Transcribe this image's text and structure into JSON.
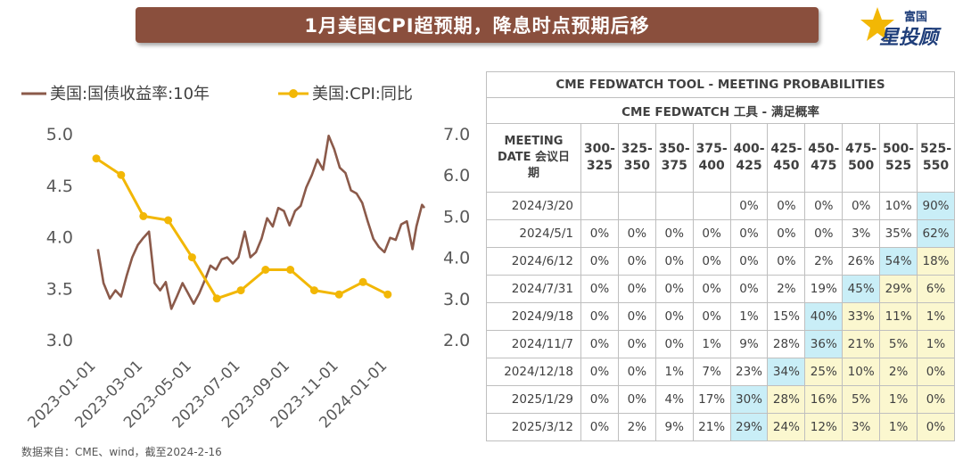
{
  "header": {
    "title": "1月美国CPI超预期，降息时点预期后移"
  },
  "logo": {
    "small": "富国",
    "big": "星投顾"
  },
  "source": "数据来自：CME、wind，截至2024-2-16",
  "colors": {
    "yield_line": "#8b5a4a",
    "cpi_line": "#f2b705",
    "blue_cell": "#c9eef7",
    "yellow_cell": "#fbf7cf"
  },
  "chart_data": {
    "type": "line",
    "x_ticks": [
      "2023-01-01",
      "2023-03-01",
      "2023-05-01",
      "2023-07-01",
      "2023-09-01",
      "2023-11-01",
      "2024-01-01"
    ],
    "x_range": [
      "2023-01-01",
      "2024-02-16"
    ],
    "y_left": {
      "range": [
        3.0,
        5.0
      ],
      "ticks": [
        "5.0",
        "4.5",
        "4.0",
        "3.5",
        "3.0"
      ]
    },
    "y_right": {
      "range": [
        2.0,
        7.0
      ],
      "ticks": [
        "7.0",
        "6.0",
        "5.0",
        "4.0",
        "3.0",
        "2.0"
      ]
    },
    "series": [
      {
        "name": "美国:国债收益率:10年",
        "axis": "left",
        "points": [
          [
            "2023-01-03",
            3.88
          ],
          [
            "2023-01-10",
            3.55
          ],
          [
            "2023-01-18",
            3.4
          ],
          [
            "2023-01-25",
            3.48
          ],
          [
            "2023-02-01",
            3.42
          ],
          [
            "2023-02-08",
            3.62
          ],
          [
            "2023-02-15",
            3.8
          ],
          [
            "2023-02-22",
            3.92
          ],
          [
            "2023-03-01",
            3.99
          ],
          [
            "2023-03-08",
            4.05
          ],
          [
            "2023-03-15",
            3.55
          ],
          [
            "2023-03-22",
            3.48
          ],
          [
            "2023-03-29",
            3.56
          ],
          [
            "2023-04-05",
            3.3
          ],
          [
            "2023-04-12",
            3.42
          ],
          [
            "2023-04-19",
            3.55
          ],
          [
            "2023-04-26",
            3.45
          ],
          [
            "2023-05-03",
            3.35
          ],
          [
            "2023-05-10",
            3.45
          ],
          [
            "2023-05-17",
            3.58
          ],
          [
            "2023-05-24",
            3.72
          ],
          [
            "2023-05-31",
            3.68
          ],
          [
            "2023-06-07",
            3.78
          ],
          [
            "2023-06-14",
            3.8
          ],
          [
            "2023-06-21",
            3.74
          ],
          [
            "2023-06-28",
            3.8
          ],
          [
            "2023-07-06",
            4.05
          ],
          [
            "2023-07-13",
            3.8
          ],
          [
            "2023-07-20",
            3.85
          ],
          [
            "2023-07-27",
            3.98
          ],
          [
            "2023-08-03",
            4.18
          ],
          [
            "2023-08-10",
            4.1
          ],
          [
            "2023-08-17",
            4.28
          ],
          [
            "2023-08-24",
            4.25
          ],
          [
            "2023-08-31",
            4.11
          ],
          [
            "2023-09-07",
            4.25
          ],
          [
            "2023-09-14",
            4.3
          ],
          [
            "2023-09-21",
            4.48
          ],
          [
            "2023-09-28",
            4.6
          ],
          [
            "2023-10-05",
            4.75
          ],
          [
            "2023-10-12",
            4.65
          ],
          [
            "2023-10-19",
            4.98
          ],
          [
            "2023-10-26",
            4.85
          ],
          [
            "2023-11-02",
            4.67
          ],
          [
            "2023-11-09",
            4.62
          ],
          [
            "2023-11-16",
            4.45
          ],
          [
            "2023-11-23",
            4.42
          ],
          [
            "2023-11-30",
            4.33
          ],
          [
            "2023-12-07",
            4.15
          ],
          [
            "2023-12-14",
            3.98
          ],
          [
            "2023-12-21",
            3.9
          ],
          [
            "2023-12-28",
            3.85
          ],
          [
            "2024-01-04",
            3.99
          ],
          [
            "2024-01-11",
            3.97
          ],
          [
            "2024-01-18",
            4.12
          ],
          [
            "2024-01-25",
            4.15
          ],
          [
            "2024-02-01",
            3.88
          ],
          [
            "2024-02-06",
            4.1
          ],
          [
            "2024-02-13",
            4.31
          ],
          [
            "2024-02-16",
            4.28
          ]
        ]
      },
      {
        "name": "美国:CPI:同比",
        "axis": "right",
        "points": [
          [
            "2023-01-01",
            6.4
          ],
          [
            "2023-02-01",
            6.0
          ],
          [
            "2023-03-01",
            5.0
          ],
          [
            "2023-04-01",
            4.9
          ],
          [
            "2023-05-01",
            4.0
          ],
          [
            "2023-06-01",
            3.0
          ],
          [
            "2023-07-01",
            3.2
          ],
          [
            "2023-08-01",
            3.7
          ],
          [
            "2023-09-01",
            3.7
          ],
          [
            "2023-10-01",
            3.2
          ],
          [
            "2023-11-01",
            3.1
          ],
          [
            "2023-12-01",
            3.4
          ],
          [
            "2024-01-01",
            3.1
          ]
        ]
      }
    ]
  },
  "table": {
    "caption_en": "CME FEDWATCH TOOL - MEETING PROBABILITIES",
    "caption_cn": "CME FEDWATCH 工具 - 满足概率",
    "meeting_header": [
      "MEETING",
      "DATE 会议日",
      "期"
    ],
    "columns": [
      [
        "300-",
        "325"
      ],
      [
        "325-",
        "350"
      ],
      [
        "350-",
        "375"
      ],
      [
        "375-",
        "400"
      ],
      [
        "400-",
        "425"
      ],
      [
        "425-",
        "450"
      ],
      [
        "450-",
        "475"
      ],
      [
        "475-",
        "500"
      ],
      [
        "500-",
        "525"
      ],
      [
        "525-",
        "550"
      ]
    ],
    "rows": [
      {
        "date": "2024/3/20",
        "cells": [
          "",
          "",
          "",
          "",
          "0%",
          "0%",
          "0%",
          "0%",
          "10%",
          "90%"
        ]
      },
      {
        "date": "2024/5/1",
        "cells": [
          "0%",
          "0%",
          "0%",
          "0%",
          "0%",
          "0%",
          "0%",
          "3%",
          "35%",
          "62%"
        ]
      },
      {
        "date": "2024/6/12",
        "cells": [
          "0%",
          "0%",
          "0%",
          "0%",
          "0%",
          "0%",
          "2%",
          "26%",
          "54%",
          "18%"
        ]
      },
      {
        "date": "2024/7/31",
        "cells": [
          "0%",
          "0%",
          "0%",
          "0%",
          "0%",
          "2%",
          "19%",
          "45%",
          "29%",
          "6%"
        ]
      },
      {
        "date": "2024/9/18",
        "cells": [
          "0%",
          "0%",
          "0%",
          "0%",
          "1%",
          "15%",
          "40%",
          "33%",
          "11%",
          "1%"
        ]
      },
      {
        "date": "2024/11/7",
        "cells": [
          "0%",
          "0%",
          "0%",
          "1%",
          "9%",
          "28%",
          "36%",
          "21%",
          "5%",
          "1%"
        ]
      },
      {
        "date": "2024/12/18",
        "cells": [
          "0%",
          "0%",
          "1%",
          "7%",
          "23%",
          "34%",
          "25%",
          "10%",
          "2%",
          "0%"
        ]
      },
      {
        "date": "2025/1/29",
        "cells": [
          "0%",
          "0%",
          "4%",
          "17%",
          "30%",
          "28%",
          "16%",
          "5%",
          "1%",
          "0%"
        ]
      },
      {
        "date": "2025/3/12",
        "cells": [
          "0%",
          "2%",
          "9%",
          "21%",
          "29%",
          "24%",
          "12%",
          "3%",
          "1%",
          "0%"
        ]
      }
    ],
    "highlight_blue": [
      [
        0,
        9
      ],
      [
        1,
        9
      ],
      [
        2,
        8
      ],
      [
        3,
        7
      ],
      [
        4,
        6
      ],
      [
        5,
        6
      ],
      [
        6,
        5
      ],
      [
        7,
        4
      ],
      [
        8,
        4
      ]
    ],
    "highlight_yellow": [
      [
        2,
        9
      ],
      [
        3,
        8
      ],
      [
        3,
        9
      ],
      [
        4,
        7
      ],
      [
        4,
        8
      ],
      [
        4,
        9
      ],
      [
        5,
        7
      ],
      [
        5,
        8
      ],
      [
        5,
        9
      ],
      [
        6,
        6
      ],
      [
        6,
        7
      ],
      [
        6,
        8
      ],
      [
        6,
        9
      ],
      [
        7,
        5
      ],
      [
        7,
        6
      ],
      [
        7,
        7
      ],
      [
        7,
        8
      ],
      [
        7,
        9
      ],
      [
        8,
        5
      ],
      [
        8,
        6
      ],
      [
        8,
        7
      ],
      [
        8,
        8
      ],
      [
        8,
        9
      ]
    ]
  }
}
